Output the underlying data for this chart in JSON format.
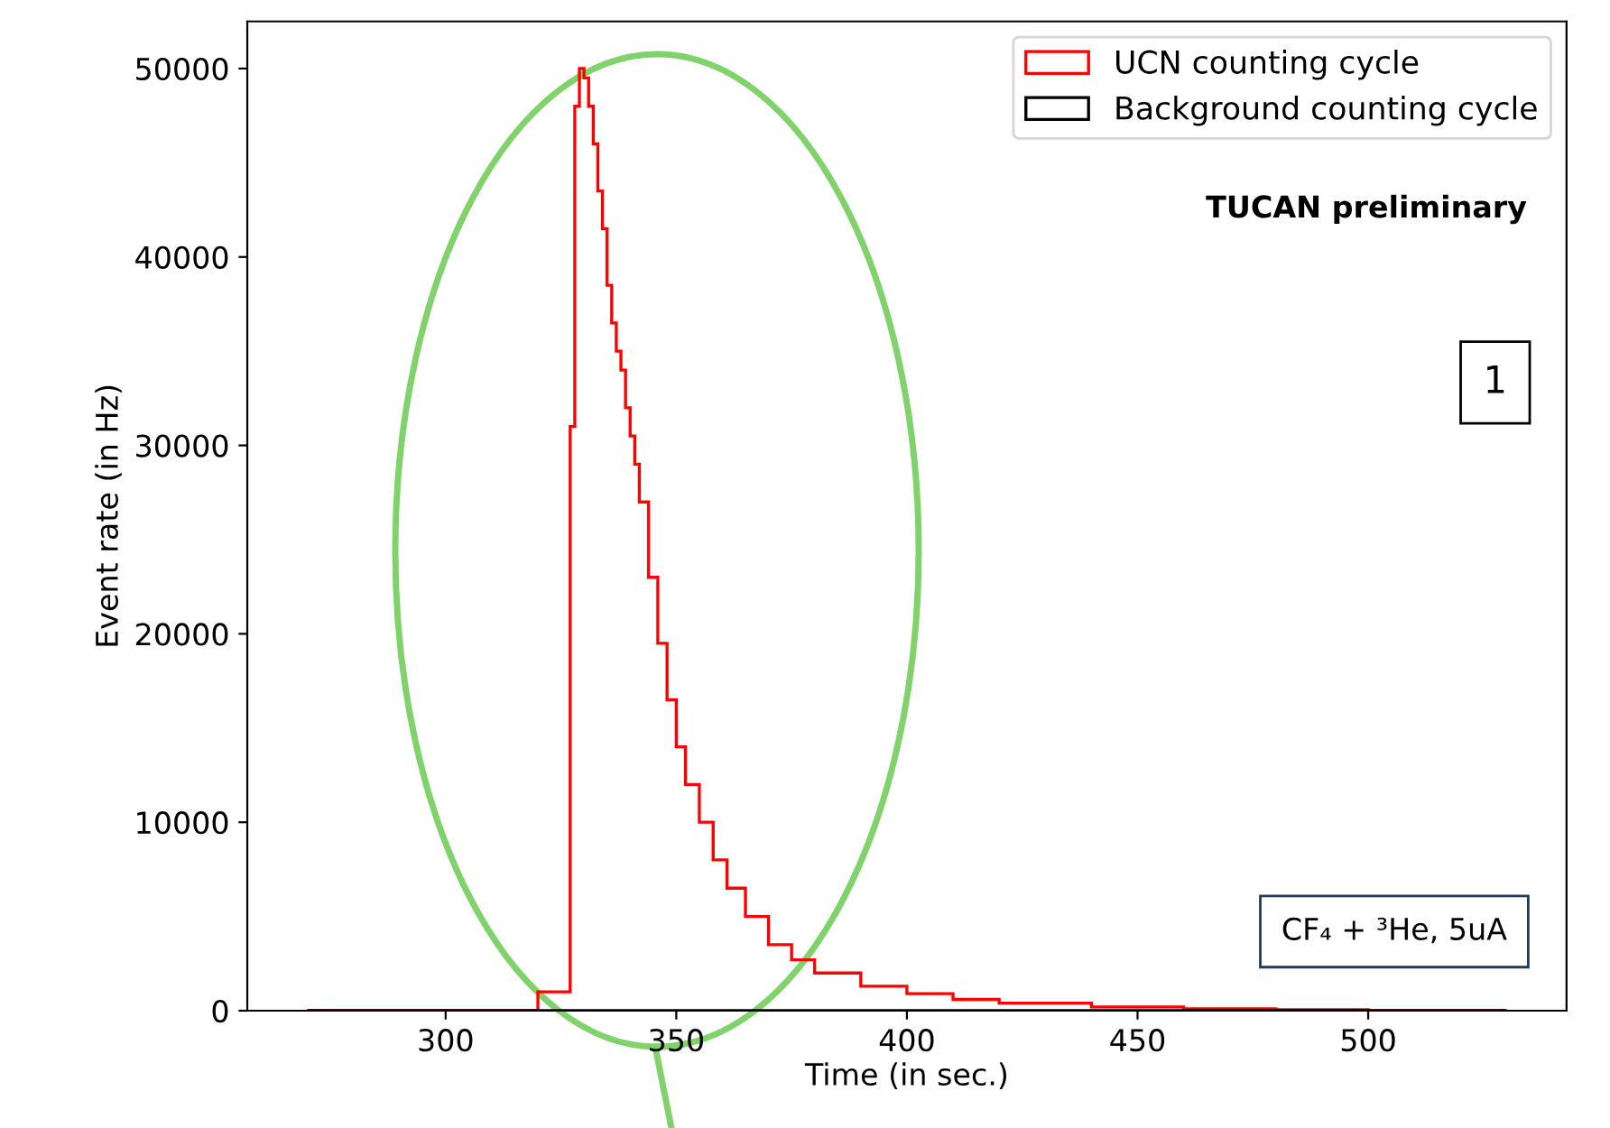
{
  "chart_data": {
    "type": "histogram",
    "xlabel": "Time (in sec.)",
    "ylabel": "Event rate (in Hz)",
    "bins": [
      270,
      320,
      327,
      328,
      329,
      330,
      331,
      332,
      333,
      334,
      335,
      336,
      337,
      338,
      339,
      340,
      341,
      342,
      344,
      346,
      348,
      350,
      352,
      355,
      358,
      361,
      365,
      370,
      375,
      380,
      390,
      400,
      410,
      420,
      440,
      460,
      480,
      500,
      530
    ],
    "series": [
      {
        "name": "UCN counting cycle",
        "color": "#ff0000",
        "values": [
          0,
          1000,
          31000,
          48000,
          50000,
          49500,
          48000,
          46000,
          43500,
          41500,
          38500,
          36500,
          35000,
          34000,
          32000,
          30500,
          29000,
          27000,
          23000,
          19500,
          16500,
          14000,
          12000,
          10000,
          8000,
          6500,
          5000,
          3500,
          2700,
          2000,
          1300,
          900,
          600,
          400,
          200,
          100,
          50,
          0
        ]
      },
      {
        "name": "Background counting cycle",
        "color": "#000000",
        "values": [
          0,
          0,
          0,
          0,
          0,
          0,
          0,
          0,
          0,
          0,
          0,
          0,
          0,
          0,
          0,
          0,
          0,
          0,
          0,
          0,
          0,
          0,
          0,
          0,
          0,
          0,
          0,
          0,
          0,
          0,
          0,
          0,
          0,
          0,
          0,
          0,
          0,
          0
        ]
      }
    ],
    "xlim": [
      257,
      543
    ],
    "ylim": [
      0,
      52500
    ],
    "xticks": [
      300,
      350,
      400,
      450,
      500
    ],
    "yticks": [
      0,
      10000,
      20000,
      30000,
      40000,
      50000
    ],
    "grid": false,
    "legend": "top right",
    "annotations": [
      "TUCAN preliminary",
      "1",
      "CF₄ + ³He, 5uA"
    ]
  }
}
